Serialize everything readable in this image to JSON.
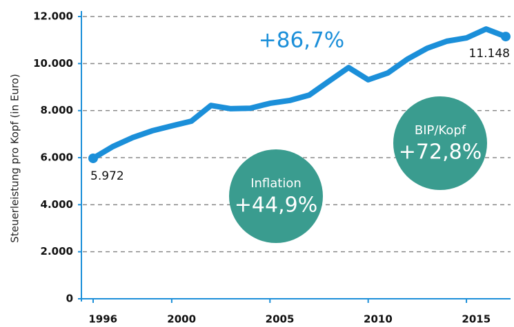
{
  "chart_data": {
    "type": "line",
    "y_label": "Steuerleistung pro Kopf (in Euro)",
    "x": [
      1996,
      1997,
      1998,
      1999,
      2000,
      2001,
      2002,
      2003,
      2004,
      2005,
      2006,
      2007,
      2008,
      2009,
      2010,
      2011,
      2012,
      2013,
      2014,
      2015,
      2016,
      2017
    ],
    "series": [
      {
        "name": "Steuerleistung pro Kopf",
        "color": "#1b8fd9",
        "values": [
          5972,
          6470,
          6850,
          7140,
          7350,
          7550,
          8220,
          8080,
          8100,
          8310,
          8430,
          8660,
          9250,
          9830,
          9310,
          9600,
          10190,
          10650,
          10950,
          11090,
          11470,
          11148
        ],
        "value_labels": [
          "5.972",
          null,
          null,
          null,
          null,
          null,
          null,
          null,
          null,
          null,
          null,
          null,
          null,
          null,
          null,
          null,
          null,
          null,
          null,
          null,
          null,
          "11.148"
        ]
      }
    ],
    "xlim": [
      1996,
      2017
    ],
    "xticks": [
      1996,
      2000,
      2005,
      2010,
      2015
    ],
    "ylim": [
      0,
      12000
    ],
    "yticks": [
      0,
      {
        "value": 2000,
        "label": "2.000"
      },
      {
        "value": 4000,
        "label": "4.000"
      },
      {
        "value": 6000,
        "label": "6.000"
      },
      {
        "value": 8000,
        "label": "8.000"
      },
      {
        "value": 10000,
        "label": "10.000"
      },
      {
        "value": 12000,
        "label": "12.000"
      }
    ],
    "grid": true,
    "annotations": [
      {
        "text": "+86,7%",
        "color": "#1b8fd9"
      },
      {
        "label": "Inflation",
        "text": "+44,9%",
        "color": "#3a9c8f"
      },
      {
        "label": "BIP/Kopf",
        "text": "+72,8%",
        "color": "#3a9c8f"
      }
    ]
  }
}
